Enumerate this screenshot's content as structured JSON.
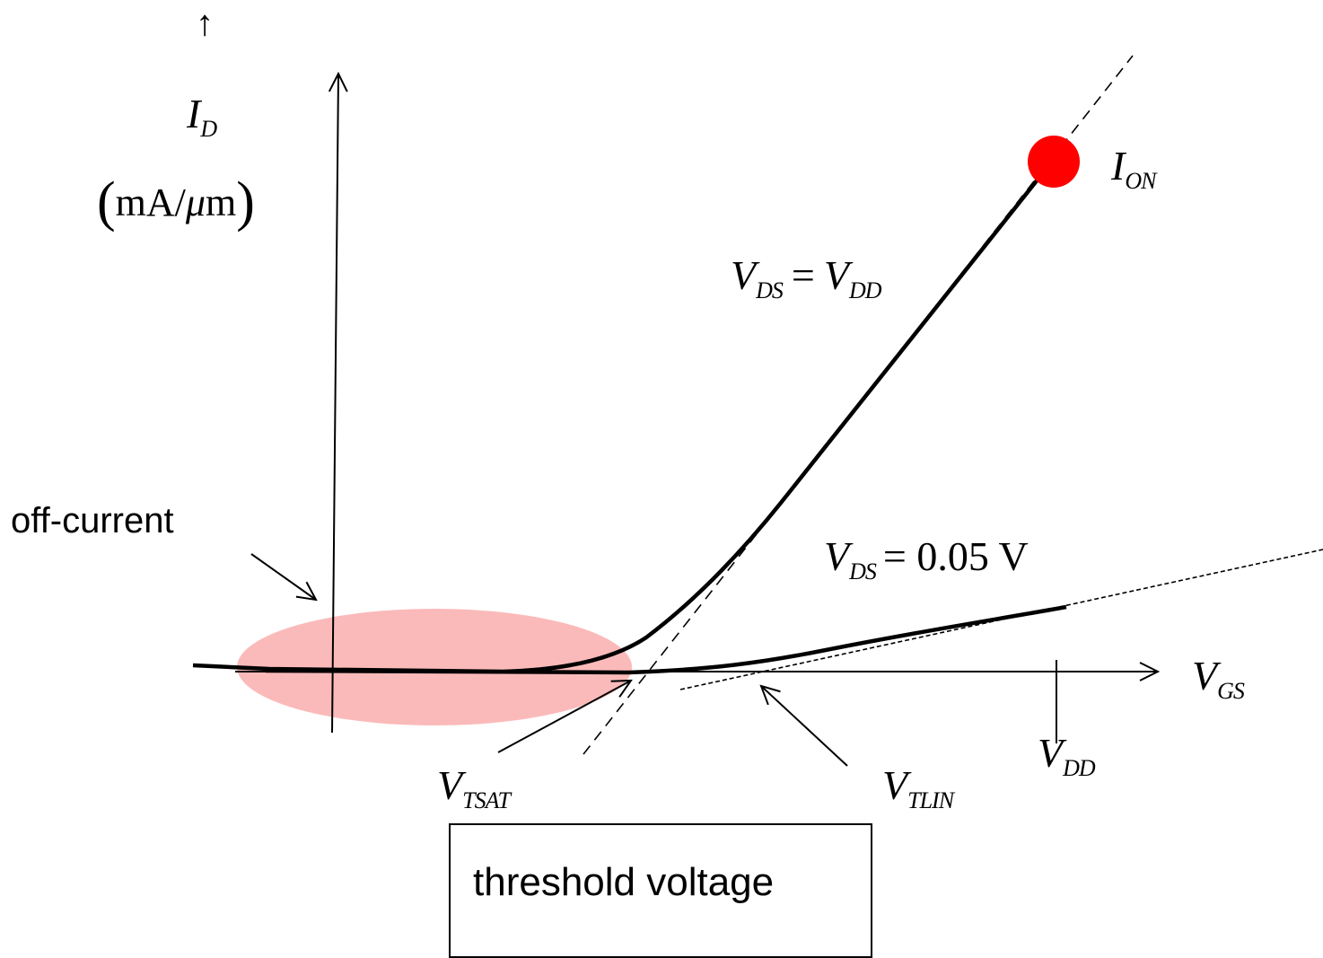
{
  "labels": {
    "arrow_up": "↑",
    "id_main": "I",
    "id_sub": "D",
    "units_open": "(",
    "units_text": "mA/",
    "units_mu": "μ",
    "units_m": "m",
    "units_close": ")",
    "ion_main": "I",
    "ion_sub": "ON",
    "vds_vdd_v1": "V",
    "vds_vdd_s1": "DS",
    "vds_vdd_eq": "=",
    "vds_vdd_v2": "V",
    "vds_vdd_s2": "DD",
    "vds_lin_v": "V",
    "vds_lin_s": "DS",
    "vds_lin_eq": "= 0.05 V",
    "vgs_v": "V",
    "vgs_s": "GS",
    "vdd_v": "V",
    "vdd_s": "DD",
    "vtsat_v": "V",
    "vtsat_s": "TSAT",
    "vtlin_v": "V",
    "vtlin_s": "TLIN",
    "off_current": "off-current",
    "threshold_box": "threshold voltage"
  },
  "colors": {
    "ion_marker": "#ff0000",
    "offcurrent_ellipse": "#f9a3a3",
    "curve": "#000000"
  }
}
